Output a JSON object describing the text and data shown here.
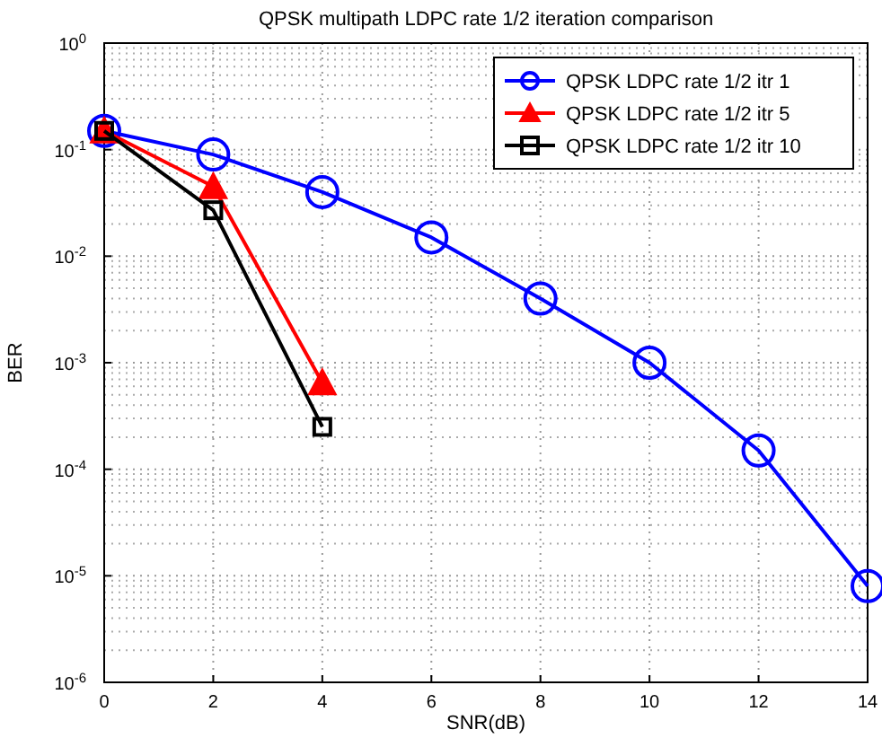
{
  "chart_data": {
    "type": "line",
    "title": "QPSK multipath LDPC rate 1/2 iteration comparison",
    "xlabel": "SNR(dB)",
    "ylabel": "BER",
    "log": "y",
    "grid": true,
    "legend": "top right",
    "line_style": "solid",
    "xlim": [
      0,
      14
    ],
    "xticks": [
      0,
      2,
      4,
      6,
      8,
      10,
      12,
      14
    ],
    "ylim": [
      1e-06,
      1
    ],
    "yticks": [
      {
        "value": 1e-06,
        "label": "10$^{-6}$"
      },
      {
        "value": 1e-05,
        "label": "10$^{-5}$"
      },
      {
        "value": 0.0001,
        "label": "10$^{-4}$"
      },
      {
        "value": 0.001,
        "label": "10$^{-3}$"
      },
      {
        "value": 0.01,
        "label": "10$^{-2}$"
      },
      {
        "value": 0.1,
        "label": "10$^{-1}$"
      },
      {
        "value": 1,
        "label": "10$^{0}$"
      }
    ],
    "series": [
      {
        "name": "QPSK LDPC rate 1/2 itr 1",
        "color": "#0000ff",
        "marker": "circle",
        "x": [
          0,
          2,
          4,
          6,
          8,
          10,
          12,
          14
        ],
        "values": [
          0.15,
          0.09,
          0.04,
          0.015,
          0.004,
          0.001,
          0.00015,
          8e-06
        ]
      },
      {
        "name": "QPSK LDPC rate 1/2 itr 5",
        "color": "#ff0000",
        "marker": "triangle",
        "x": [
          0,
          2,
          4
        ],
        "values": [
          0.15,
          0.045,
          0.00065
        ]
      },
      {
        "name": "QPSK LDPC rate 1/2 itr 10",
        "color": "#000000",
        "marker": "square",
        "x": [
          0,
          2,
          4
        ],
        "values": [
          0.15,
          0.027,
          0.00025
        ]
      }
    ]
  }
}
